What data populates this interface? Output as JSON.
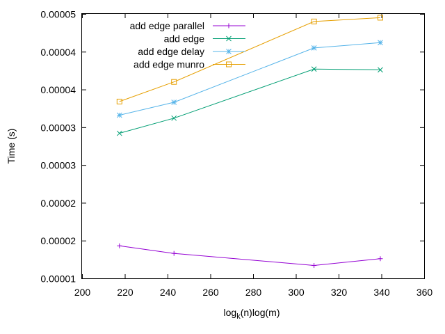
{
  "chart_data": {
    "type": "line",
    "xlabel": {
      "base": "log",
      "sub": "k",
      "rest": "(n)log(m)"
    },
    "ylabel": "Time (s)",
    "xlim": [
      200,
      360
    ],
    "ylim": [
      1.5e-05,
      5e-05
    ],
    "grid": false,
    "legend_position": "top-left",
    "x_ticks": [
      200,
      220,
      240,
      260,
      280,
      300,
      320,
      340,
      360
    ],
    "y_ticks": [
      1.5e-05,
      2e-05,
      2.5e-05,
      3e-05,
      3.5e-05,
      4e-05,
      4.5e-05,
      5e-05
    ],
    "y_tick_labels": [
      "0.00001",
      "0.00002",
      "0.00002",
      "0.00003",
      "0.00003",
      "0.00004",
      "0.00004",
      "0.00005"
    ],
    "x": [
      217.5,
      243,
      308.5,
      339.5
    ],
    "series": [
      {
        "name": "add edge parallel",
        "color": "#9400d3",
        "marker": "plus",
        "values": [
          1.93e-05,
          1.83e-05,
          1.67e-05,
          1.76e-05
        ]
      },
      {
        "name": "add edge",
        "color": "#009e73",
        "marker": "cross",
        "values": [
          3.42e-05,
          3.62e-05,
          4.27e-05,
          4.26e-05
        ]
      },
      {
        "name": "add edge delay",
        "color": "#56b4e9",
        "marker": "star",
        "values": [
          3.66e-05,
          3.83e-05,
          4.55e-05,
          4.62e-05
        ]
      },
      {
        "name": "add edge munro",
        "color": "#e69f00",
        "marker": "square",
        "values": [
          3.84e-05,
          4.1e-05,
          4.9e-05,
          4.95e-05
        ]
      }
    ]
  }
}
